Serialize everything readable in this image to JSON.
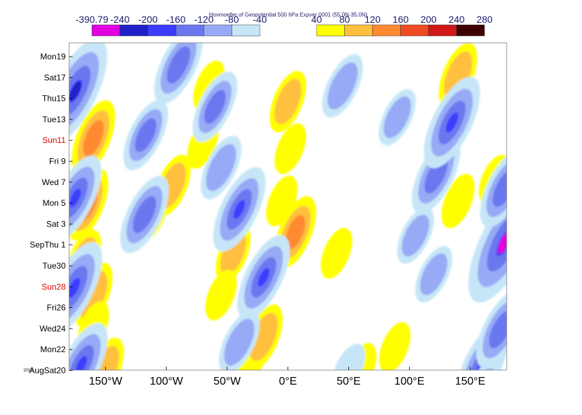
{
  "chart_data": {
    "type": "heatmap",
    "title": "Hovmoeller of Geopotential 500 hPa Expver 0001 (55.0N-35.0N)",
    "x_ticks": [
      "150°W",
      "100°W",
      "50°W",
      "0°E",
      "50°E",
      "100°E",
      "150°E"
    ],
    "x_tick_values": [
      -150,
      -100,
      -50,
      0,
      50,
      100,
      150
    ],
    "xlim": [
      -180,
      180
    ],
    "y_ticks": [
      {
        "label": "Mon19",
        "highlight": false
      },
      {
        "label": "Sat17",
        "highlight": false
      },
      {
        "label": "Thu15",
        "highlight": false
      },
      {
        "label": "Tue13",
        "highlight": false
      },
      {
        "label": "Sun11",
        "highlight": true
      },
      {
        "label": "Fri 9",
        "highlight": false
      },
      {
        "label": "Wed 7",
        "highlight": false
      },
      {
        "label": "Mon 5",
        "highlight": false
      },
      {
        "label": "Sat 3",
        "highlight": false
      },
      {
        "label": "SepThu 1",
        "highlight": false
      },
      {
        "label": "Tue30",
        "highlight": false
      },
      {
        "label": "Sun28",
        "highlight": true
      },
      {
        "label": "Fri26",
        "highlight": false
      },
      {
        "label": "Wed24",
        "highlight": false
      },
      {
        "label": "Mon22",
        "highlight": false
      },
      {
        "label": "AugSat20",
        "highlight": false
      }
    ],
    "year_label": "2016",
    "highlight_color": "#e00000",
    "legend_negative": {
      "labels": [
        "-390.79",
        "-240",
        "-200",
        "-160",
        "-120",
        "-80",
        "-40"
      ],
      "colors": [
        "#e000e0",
        "#2020c8",
        "#3c3cff",
        "#6a78f0",
        "#98aaf6",
        "#c6e6f8"
      ]
    },
    "legend_positive": {
      "labels": [
        "40",
        "80",
        "120",
        "160",
        "200",
        "240",
        "280"
      ],
      "colors": [
        "#ffff00",
        "#ffc040",
        "#ff8a30",
        "#f04a20",
        "#d01818",
        "#3c0000"
      ]
    },
    "anomaly_features": [
      {
        "lon": -160,
        "day": 8,
        "anomaly": 130
      },
      {
        "lon": -165,
        "day": 14.3,
        "anomaly": 120
      },
      {
        "lon": -160,
        "day": 23,
        "anomaly": 100
      },
      {
        "lon": -150,
        "day": 30,
        "anomaly": 90
      },
      {
        "lon": -175,
        "day": 33,
        "anomaly": 60
      },
      {
        "lon": -168,
        "day": 19.5,
        "anomaly": 80
      },
      {
        "lon": -160,
        "day": 26,
        "anomaly": 60
      },
      {
        "lon": -112,
        "day": 15.2,
        "anomaly": 70
      },
      {
        "lon": -95,
        "day": 12.5,
        "anomaly": 90
      },
      {
        "lon": -70,
        "day": 8.5,
        "anomaly": 60
      },
      {
        "lon": -65,
        "day": 3,
        "anomaly": 60
      },
      {
        "lon": -45,
        "day": 19,
        "anomaly": 80
      },
      {
        "lon": -55,
        "day": 23,
        "anomaly": 60
      },
      {
        "lon": -30,
        "day": 29,
        "anomaly": 70
      },
      {
        "lon": -20,
        "day": 27,
        "anomaly": 100
      },
      {
        "lon": 0,
        "day": 4.5,
        "anomaly": 90
      },
      {
        "lon": 2,
        "day": 9,
        "anomaly": 60
      },
      {
        "lon": 6,
        "day": 17,
        "anomaly": 120
      },
      {
        "lon": -5,
        "day": 14,
        "anomaly": 60
      },
      {
        "lon": 40,
        "day": 19,
        "anomaly": 60
      },
      {
        "lon": 60,
        "day": 30,
        "anomaly": 60
      },
      {
        "lon": 88,
        "day": 28,
        "anomaly": 60
      },
      {
        "lon": 140,
        "day": 2,
        "anomaly": 100
      },
      {
        "lon": 140,
        "day": 14,
        "anomaly": 70
      },
      {
        "lon": 170,
        "day": 12,
        "anomaly": 60
      },
      {
        "lon": -175,
        "day": 3.5,
        "anomaly": -220
      },
      {
        "lon": -175,
        "day": 13.7,
        "anomaly": -160
      },
      {
        "lon": -176,
        "day": 22.3,
        "anomaly": -180
      },
      {
        "lon": -170,
        "day": 29.7,
        "anomaly": -160
      },
      {
        "lon": -117,
        "day": 7.7,
        "anomaly": -120
      },
      {
        "lon": -118,
        "day": 15.3,
        "anomaly": -140
      },
      {
        "lon": -90,
        "day": 1,
        "anomaly": -140
      },
      {
        "lon": -40,
        "day": 14.8,
        "anomaly": -160
      },
      {
        "lon": -55,
        "day": 10.8,
        "anomaly": -100
      },
      {
        "lon": -60,
        "day": 5,
        "anomaly": -120
      },
      {
        "lon": -20,
        "day": 21.3,
        "anomaly": -160
      },
      {
        "lon": -40,
        "day": 27.5,
        "anomaly": -100
      },
      {
        "lon": 45,
        "day": 3,
        "anomaly": -100
      },
      {
        "lon": 90,
        "day": 6,
        "anomaly": -80
      },
      {
        "lon": 105,
        "day": 17.3,
        "anomaly": -80
      },
      {
        "lon": 120,
        "day": 21,
        "anomaly": -80
      },
      {
        "lon": 122,
        "day": 11.5,
        "anomaly": -140
      },
      {
        "lon": 135,
        "day": 6.5,
        "anomaly": -180
      },
      {
        "lon": 160,
        "day": 29.7,
        "anomaly": -160
      },
      {
        "lon": 175,
        "day": 26.3,
        "anomaly": -140
      },
      {
        "lon": 178,
        "day": 18,
        "anomaly": -260
      },
      {
        "lon": 178,
        "day": 12.8,
        "anomaly": -140
      },
      {
        "lon": 160,
        "day": 32,
        "anomaly": -80
      },
      {
        "lon": 50,
        "day": 30,
        "anomaly": -60
      }
    ]
  }
}
